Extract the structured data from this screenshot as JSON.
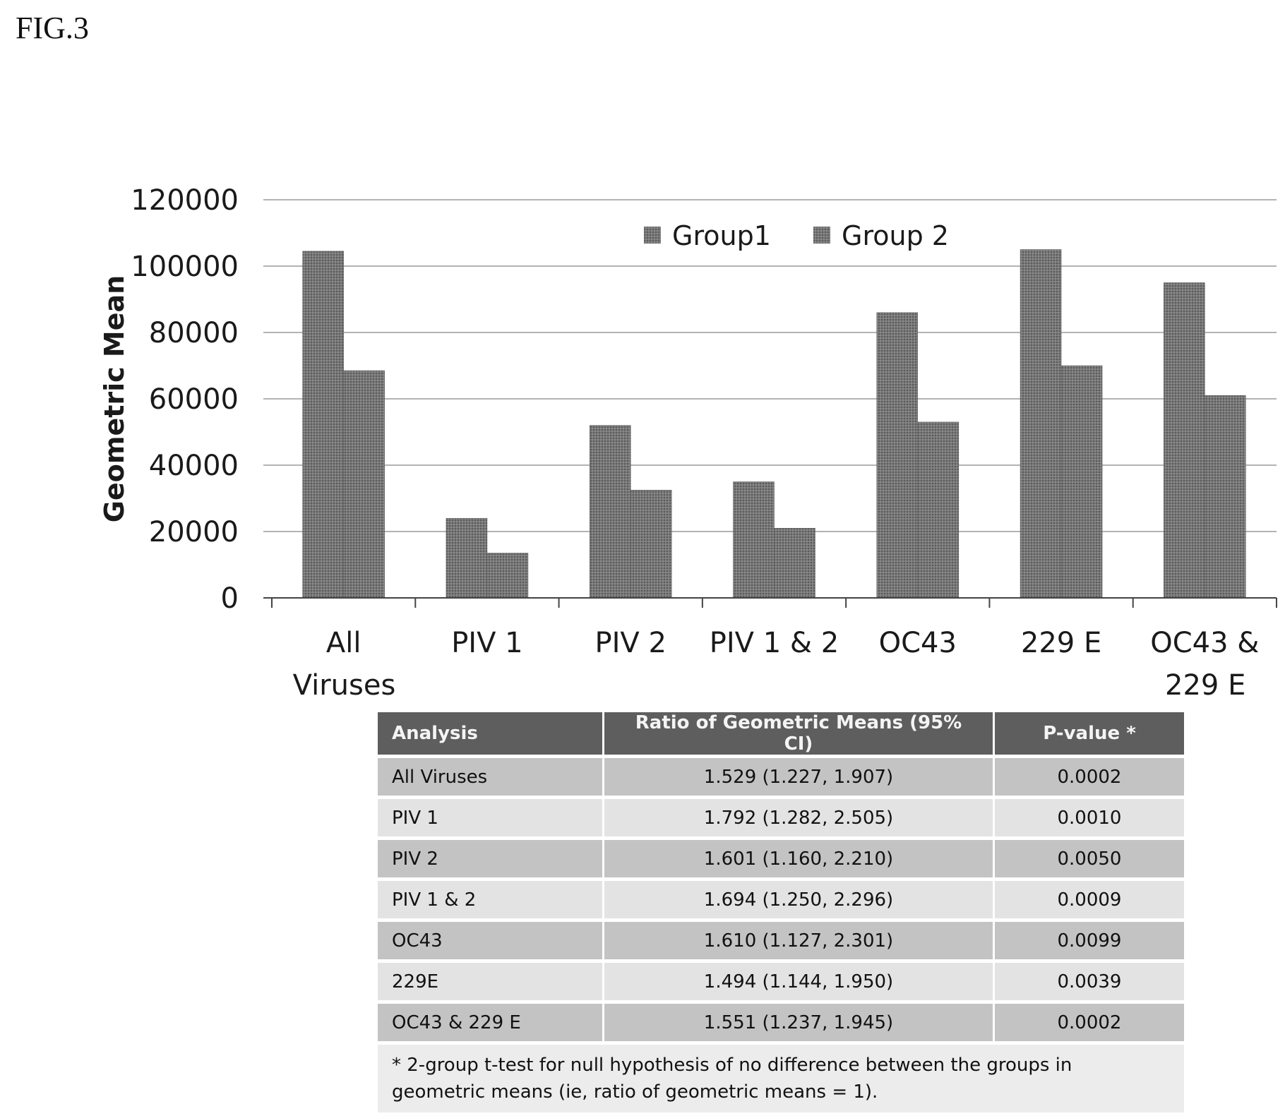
{
  "figure_label": "FIG.3",
  "colors": {
    "group1": "#6e6e6e",
    "group2": "#6e6e6e",
    "grid": "#9a9a9a",
    "axis": "#444444"
  },
  "chart_data": {
    "type": "bar",
    "ylabel": "Geometric Mean",
    "ylim": [
      0,
      120000
    ],
    "yticks": [
      0,
      20000,
      40000,
      60000,
      80000,
      100000,
      120000
    ],
    "grid": true,
    "legend_position": "top",
    "categories": [
      [
        "All",
        "Viruses"
      ],
      [
        "PIV 1"
      ],
      [
        "PIV 2"
      ],
      [
        "PIV 1 & 2"
      ],
      [
        "OC43"
      ],
      [
        "229 E"
      ],
      [
        "OC43 &",
        "229 E"
      ]
    ],
    "series": [
      {
        "name": "Group1",
        "values": [
          104500,
          24000,
          52000,
          35000,
          86000,
          105000,
          95000
        ]
      },
      {
        "name": "Group 2",
        "values": [
          68500,
          13500,
          32500,
          21000,
          53000,
          70000,
          61000
        ]
      }
    ]
  },
  "table": {
    "headers": [
      "Analysis",
      "Ratio of Geometric Means (95% CI)",
      "P-value *"
    ],
    "rows": [
      [
        "All Viruses",
        "1.529 (1.227, 1.907)",
        "0.0002"
      ],
      [
        "PIV 1",
        "1.792 (1.282, 2.505)",
        "0.0010"
      ],
      [
        "PIV 2",
        "1.601 (1.160, 2.210)",
        "0.0050"
      ],
      [
        "PIV 1 & 2",
        "1.694 (1.250, 2.296)",
        "0.0009"
      ],
      [
        "OC43",
        "1.610 (1.127, 2.301)",
        "0.0099"
      ],
      [
        "229E",
        "1.494 (1.144, 1.950)",
        "0.0039"
      ],
      [
        "OC43 & 229 E",
        "1.551 (1.237, 1.945)",
        "0.0002"
      ]
    ],
    "footnote": "* 2-group t-test for null hypothesis of no difference between the groups in geometric means (ie, ratio of geometric means = 1)."
  }
}
